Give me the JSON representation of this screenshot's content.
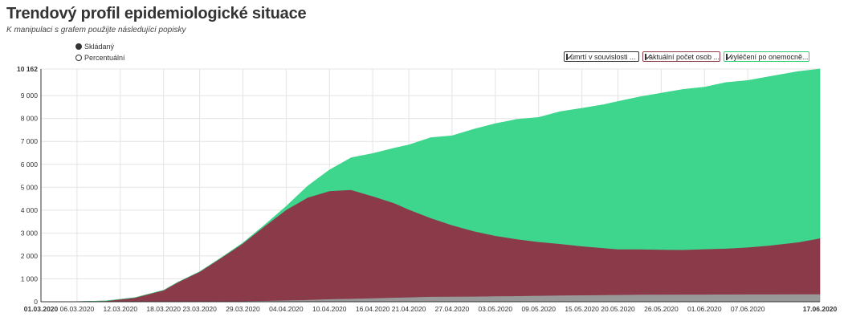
{
  "header": {
    "title": "Trendový profil epidemiologické situace",
    "subtitle": "K manipulaci s grafem použijte následující popisky"
  },
  "mode_options": [
    {
      "label": "Skládaný",
      "selected": true
    },
    {
      "label": "Percentuální",
      "selected": false
    }
  ],
  "legend": [
    {
      "label": "úmrtí v souvislosti ...",
      "color": "#333333",
      "checked": true
    },
    {
      "label": "aktuální počet osob ...",
      "color": "#8b3a4a",
      "checked": true
    },
    {
      "label": "vyléčení po onemocně...",
      "color": "#2ecc71",
      "checked": true
    }
  ],
  "chart_data": {
    "type": "area",
    "stacked": true,
    "x_tick_labels": [
      "01.03.2020",
      "06.03.2020",
      "12.03.2020",
      "18.03.2020",
      "23.03.2020",
      "29.03.2020",
      "04.04.2020",
      "10.04.2020",
      "16.04.2020",
      "21.04.2020",
      "27.04.2020",
      "03.05.2020",
      "09.05.2020",
      "15.05.2020",
      "20.05.2020",
      "26.05.2020",
      "01.06.2020",
      "07.06.2020",
      "17.06.2020"
    ],
    "y_tick_labels": [
      "0",
      "1 000",
      "2 000",
      "3 000",
      "4 000",
      "5 000",
      "6 000",
      "7 000",
      "8 000",
      "9 000",
      "10 162"
    ],
    "y_ticks": [
      0,
      1000,
      2000,
      3000,
      4000,
      5000,
      6000,
      7000,
      8000,
      9000,
      10162
    ],
    "ylim": [
      0,
      10162
    ],
    "x_start": "2020-03-01",
    "x_end": "2020-06-17",
    "grid": true,
    "legend_position": "top-right",
    "colors": {
      "deaths": "#999999",
      "active": "#8b3a4a",
      "recovered": "#3dd68c"
    },
    "x": [
      "2020-03-01",
      "2020-03-06",
      "2020-03-10",
      "2020-03-14",
      "2020-03-18",
      "2020-03-20",
      "2020-03-23",
      "2020-03-26",
      "2020-03-29",
      "2020-04-01",
      "2020-04-04",
      "2020-04-07",
      "2020-04-10",
      "2020-04-13",
      "2020-04-16",
      "2020-04-19",
      "2020-04-21",
      "2020-04-24",
      "2020-04-27",
      "2020-04-30",
      "2020-05-03",
      "2020-05-06",
      "2020-05-09",
      "2020-05-12",
      "2020-05-15",
      "2020-05-18",
      "2020-05-20",
      "2020-05-23",
      "2020-05-26",
      "2020-05-29",
      "2020-06-01",
      "2020-06-04",
      "2020-06-07",
      "2020-06-10",
      "2020-06-14",
      "2020-06-17"
    ],
    "series": [
      {
        "name": "úmrtí v souvislosti ...",
        "values": [
          0,
          0,
          0,
          0,
          2,
          5,
          9,
          20,
          31,
          46,
          67,
          88,
          119,
          138,
          161,
          187,
          201,
          223,
          227,
          235,
          245,
          255,
          269,
          280,
          290,
          297,
          306,
          315,
          318,
          321,
          322,
          325,
          330,
          331,
          333,
          334
        ]
      },
      {
        "name": "aktuální počet osob ...",
        "values": [
          0,
          8,
          40,
          180,
          500,
          850,
          1300,
          1900,
          2520,
          3250,
          3950,
          4470,
          4720,
          4750,
          4450,
          4120,
          3830,
          3440,
          3120,
          2850,
          2640,
          2480,
          2350,
          2250,
          2140,
          2050,
          1990,
          1980,
          1960,
          1950,
          1980,
          2000,
          2050,
          2130,
          2270,
          2440
        ]
      },
      {
        "name": "vyléčení po onemocně...",
        "values": [
          0,
          0,
          0,
          0,
          0,
          0,
          0,
          5,
          20,
          50,
          150,
          500,
          920,
          1400,
          1860,
          2400,
          2820,
          3500,
          3900,
          4450,
          4890,
          5230,
          5430,
          5770,
          6020,
          6260,
          6450,
          6650,
          6830,
          7000,
          7070,
          7250,
          7280,
          7370,
          7450,
          7390
        ]
      }
    ]
  }
}
